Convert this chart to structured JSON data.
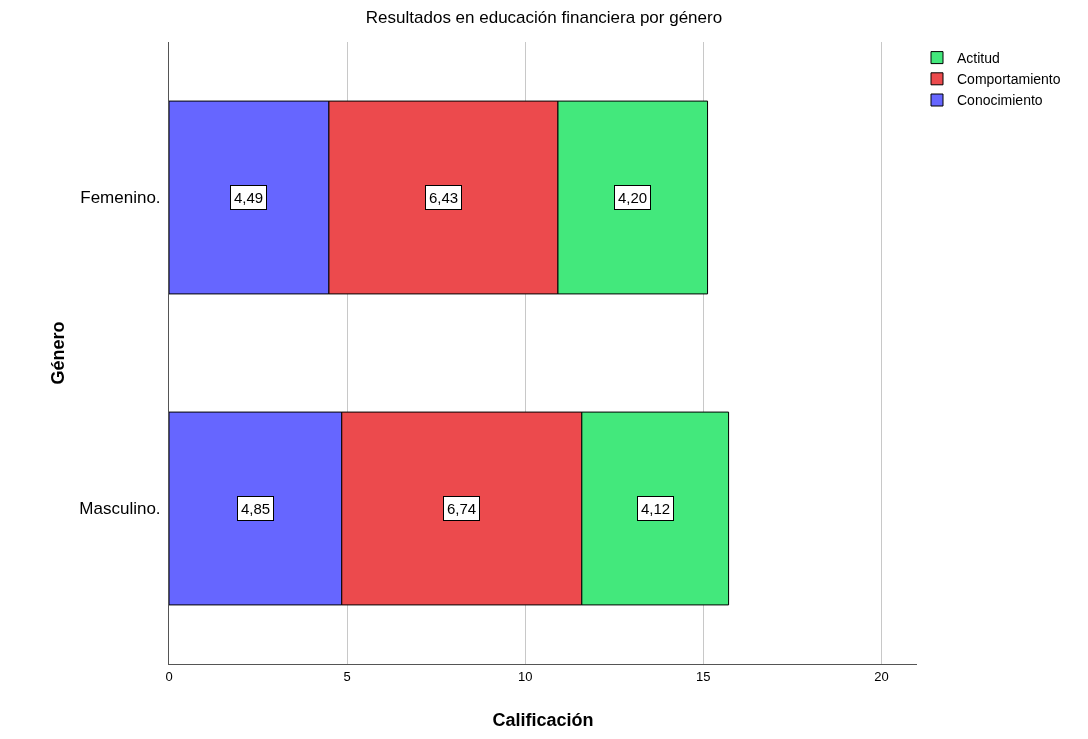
{
  "chart_data": {
    "type": "bar",
    "orientation": "horizontal",
    "stacked": true,
    "title": "Resultados en educación financiera por género",
    "xlabel": "Calificación",
    "ylabel": "Género",
    "categories": [
      "Femenino.",
      "Masculino."
    ],
    "series": [
      {
        "name": "Conocimiento",
        "color": "#6666ff",
        "values": [
          4.49,
          4.85
        ],
        "value_labels": [
          "4,49",
          "4,85"
        ]
      },
      {
        "name": "Comportamiento",
        "color": "#ec4a4d",
        "values": [
          6.43,
          6.74
        ],
        "value_labels": [
          "6,43",
          "6,74"
        ]
      },
      {
        "name": "Actitud",
        "color": "#43e87c",
        "values": [
          4.2,
          4.12
        ],
        "value_labels": [
          "4,20",
          "4,12"
        ]
      }
    ],
    "xlim": [
      0,
      21
    ],
    "xticks": [
      0,
      5,
      10,
      15,
      20
    ],
    "grid": "x",
    "legend": "top right"
  }
}
